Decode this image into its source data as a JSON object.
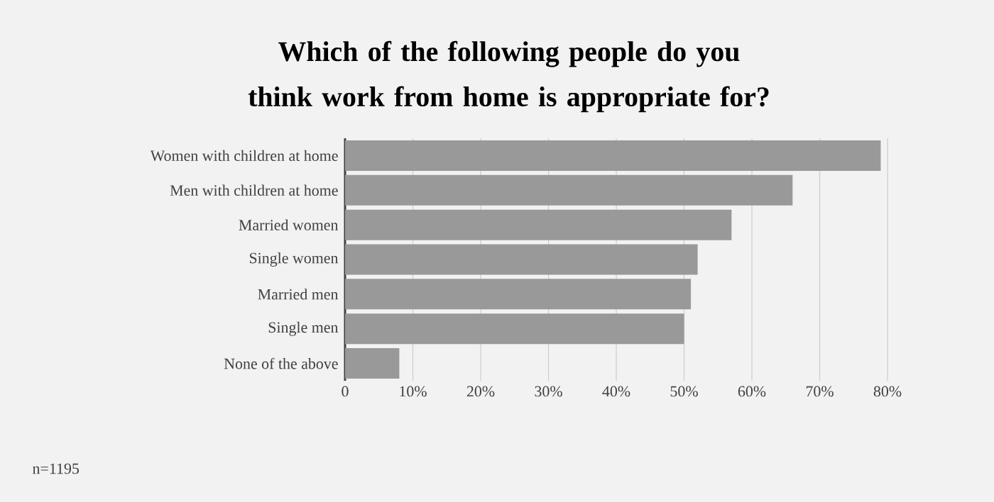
{
  "chart_data": {
    "type": "bar",
    "orientation": "horizontal",
    "title": "Which of the following people do you think work from home is appropriate for?",
    "categories": [
      "Women with children at home",
      "Men with children at home",
      "Married women",
      "Single women",
      "Married men",
      "Single men",
      "None of the above"
    ],
    "values": [
      79,
      66,
      57,
      52,
      51,
      50,
      8
    ],
    "color": "#999999",
    "xlim": [
      0,
      80
    ],
    "xticks": [
      0,
      {
        "value": 10,
        "label": "10%"
      },
      {
        "value": 20,
        "label": "20%"
      },
      {
        "value": 30,
        "label": "30%"
      },
      {
        "value": 40,
        "label": "40%"
      },
      {
        "value": 50,
        "label": "50%"
      },
      {
        "value": 60,
        "label": "60%"
      },
      {
        "value": 70,
        "label": "70%"
      },
      {
        "value": 80,
        "label": "80%"
      }
    ],
    "grid": "x",
    "annotations": [
      "n=1195"
    ]
  }
}
